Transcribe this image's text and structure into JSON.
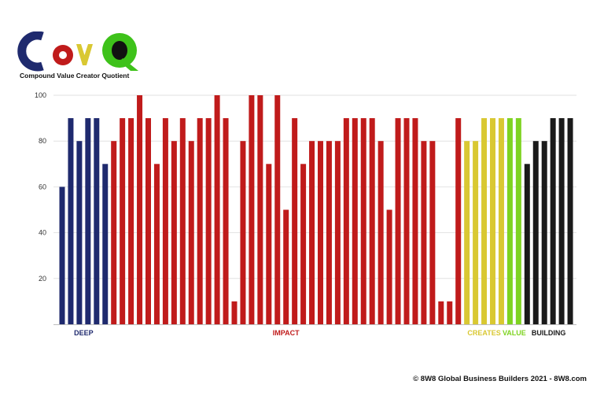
{
  "brand": {
    "logo_text": "CovQ",
    "subtitle": "Compound Value Creator Quotient"
  },
  "footer": "© 8W8 Global Business Builders 2021 - 8W8.com",
  "colors": {
    "navy": "#1f2a6e",
    "red": "#c01b1b",
    "yellow": "#d9c832",
    "green": "#7ed321",
    "black": "#1a1a1a"
  },
  "chart_data": {
    "type": "bar",
    "title": "",
    "xlabel": "",
    "ylabel": "",
    "ylim": [
      0,
      100
    ],
    "yticks": [
      20,
      40,
      60,
      80,
      100
    ],
    "grid": true,
    "legend": "none",
    "values": [
      60,
      90,
      80,
      90,
      90,
      70,
      80,
      90,
      90,
      100,
      90,
      70,
      90,
      80,
      90,
      80,
      90,
      90,
      100,
      90,
      10,
      80,
      100,
      100,
      70,
      100,
      50,
      90,
      70,
      80,
      80,
      80,
      80,
      90,
      90,
      90,
      90,
      80,
      50,
      90,
      90,
      90,
      80,
      80,
      10,
      10,
      90,
      80,
      80,
      90,
      90,
      90,
      90,
      90,
      70,
      80,
      80,
      90,
      90,
      90
    ],
    "bar_colors": [
      "navy",
      "navy",
      "navy",
      "navy",
      "navy",
      "navy",
      "red",
      "red",
      "red",
      "red",
      "red",
      "red",
      "red",
      "red",
      "red",
      "red",
      "red",
      "red",
      "red",
      "red",
      "red",
      "red",
      "red",
      "red",
      "red",
      "red",
      "red",
      "red",
      "red",
      "red",
      "red",
      "red",
      "red",
      "red",
      "red",
      "red",
      "red",
      "red",
      "red",
      "red",
      "red",
      "red",
      "red",
      "red",
      "red",
      "red",
      "red",
      "yellow",
      "yellow",
      "yellow",
      "yellow",
      "yellow",
      "green",
      "green",
      "black",
      "black",
      "black",
      "black",
      "black",
      "black"
    ],
    "groups": [
      {
        "label": "DEEP",
        "start": 0,
        "end": 5,
        "color": "navy"
      },
      {
        "label": "IMPACT",
        "start": 6,
        "end": 46,
        "color": "red"
      },
      {
        "label": "CREATES",
        "start": 47,
        "end": 51,
        "color": "yellow"
      },
      {
        "label": "VALUE",
        "start": 52,
        "end": 53,
        "color": "green"
      },
      {
        "label": "BUILDING",
        "start": 54,
        "end": 59,
        "color": "black"
      }
    ]
  }
}
